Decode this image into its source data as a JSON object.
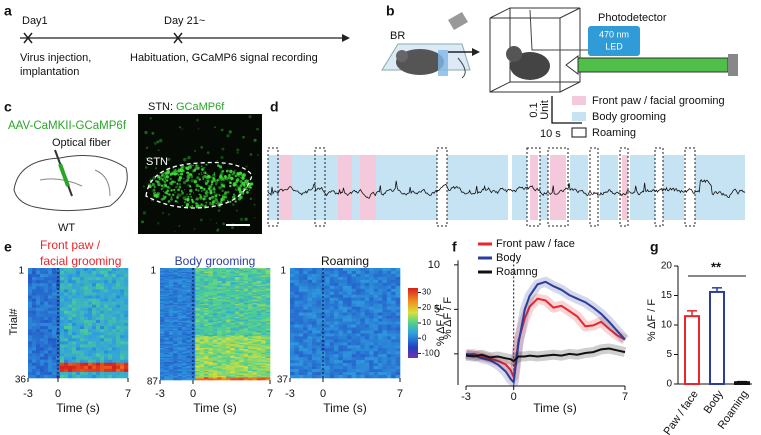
{
  "panels": {
    "a": {
      "label": "a",
      "day1": "Day1",
      "day2": "Day 21~",
      "event1": [
        "Virus injection,",
        "implantation"
      ],
      "event2": "Habituation, GCaMP6 signal recording"
    },
    "b": {
      "label": "b",
      "br": "BR",
      "detector": "Photodetector",
      "led": [
        "470 nm",
        "LED"
      ]
    },
    "c": {
      "label": "c",
      "virus": "AAV-CaMKII-GCaMP6f",
      "region": "STN:",
      "indicator": "GCaMP6f",
      "fiber": "Optical fiber",
      "strain": "WT",
      "stn": "STN"
    },
    "d": {
      "label": "d",
      "scale_y": [
        "0.1",
        "Unit"
      ],
      "scale_x": "10 s",
      "legend": [
        "Front paw / facial grooming",
        "Body grooming",
        "Roaming"
      ]
    },
    "e": {
      "label": "e",
      "ylabel": "Trial#",
      "xlabel": "Time (s)",
      "xlim": [
        -3,
        7
      ],
      "xticks": [
        -3,
        0,
        7
      ],
      "maps": [
        {
          "title": [
            "Front paw /",
            "facial grooming"
          ],
          "color": "#e8262b",
          "row_start": 1,
          "row_end": 36
        },
        {
          "title": [
            "Body grooming"
          ],
          "color": "#2c3e9c",
          "row_start": 1,
          "row_end": 87
        },
        {
          "title": [
            "Roaming"
          ],
          "color": "#111111",
          "row_start": 1,
          "row_end": 37
        }
      ],
      "colorbar": {
        "lim": [
          -13,
          33
        ],
        "ticks": [
          30,
          20,
          10,
          0,
          -10
        ],
        "label": "% ΔF / F"
      }
    },
    "f": {
      "label": "f"
    },
    "g": {
      "label": "g"
    }
  },
  "chart_data": [
    {
      "type": "line",
      "xlabel": "Time (s)",
      "ylabel": "% ΔF / F",
      "legend": "upper left",
      "x": [
        -3,
        -2.5,
        -2,
        -1.5,
        -1,
        -0.5,
        -0.2,
        0,
        0.3,
        0.7,
        1,
        1.5,
        2,
        2.5,
        3,
        3.5,
        4,
        4.5,
        5,
        5.5,
        6,
        6.5,
        7
      ],
      "series": [
        {
          "name": "Front paw / face",
          "color": "#e8262b",
          "values": [
            -0.1,
            0,
            -0.3,
            -0.5,
            -0.8,
            -1.2,
            -1.8,
            -2.6,
            1.5,
            4,
            5.3,
            6.2,
            6,
            5.2,
            5.4,
            4.8,
            4.2,
            3.1,
            3.2,
            3.6,
            2.8,
            2.1,
            1.6
          ]
        },
        {
          "name": "Body",
          "color": "#2c3e9c",
          "values": [
            0,
            -0.2,
            -0.5,
            -0.7,
            -1.2,
            -2.0,
            -2.8,
            -3.2,
            1.2,
            5,
            6.5,
            7.8,
            8.1,
            7.6,
            7.2,
            6.6,
            6.2,
            5.8,
            5.2,
            4.5,
            3.6,
            2.6,
            1.6
          ]
        },
        {
          "name": "Roamng",
          "color": "#111111",
          "values": [
            -0.2,
            -0.3,
            -0.1,
            -0.4,
            -0.3,
            -0.5,
            -0.6,
            -0.8,
            -0.3,
            -0.3,
            -0.2,
            -0.3,
            -0.2,
            -0.1,
            -0.2,
            0,
            -0.1,
            0.1,
            0.2,
            0.5,
            0.6,
            0.4,
            0.2
          ]
        }
      ],
      "xlim": [
        -3,
        7
      ],
      "ylim": [
        -3.5,
        10.5
      ],
      "xticks": [
        -3,
        0,
        7
      ],
      "yticks": [
        0,
        5,
        10
      ]
    },
    {
      "type": "bar",
      "ylabel": "% ΔF / F",
      "annotation": "**",
      "categories": [
        "Paw / face",
        "Body",
        "Roaming"
      ],
      "values": [
        11.5,
        15.6,
        0.3
      ],
      "errors": [
        0.9,
        0.7,
        0.1
      ],
      "colors": [
        "#e8262b",
        "#2c3e9c",
        "#111111"
      ],
      "ylim": [
        0,
        20
      ],
      "yticks": [
        0,
        5,
        10,
        15,
        20
      ]
    }
  ]
}
